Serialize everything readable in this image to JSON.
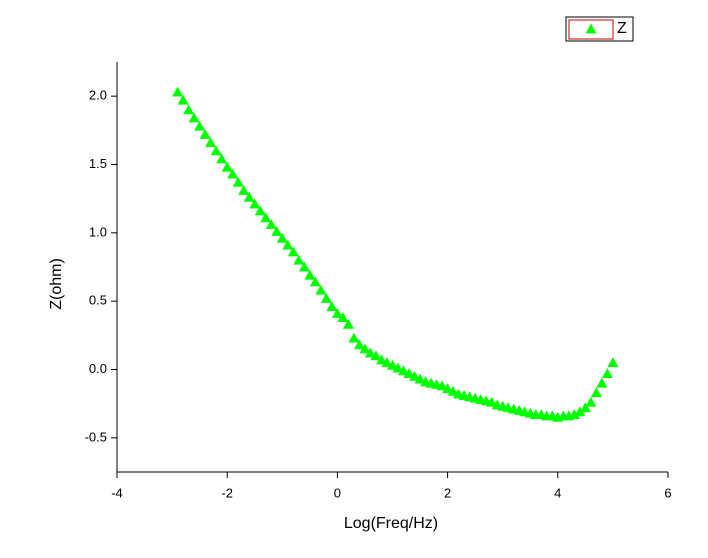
{
  "chart_data": {
    "type": "scatter",
    "x_label": "Log(Freq/Hz)",
    "y_label": "Z(ohm)",
    "xlim": [
      -4,
      6
    ],
    "ylim": [
      -0.75,
      2.25
    ],
    "xticks": [
      -4,
      -2,
      0,
      2,
      4,
      6
    ],
    "yticks": [
      -0.5,
      {
        "value": 0,
        "label": "0.0"
      },
      0.5,
      {
        "value": 1,
        "label": "1.0"
      },
      1.5,
      {
        "value": 2,
        "label": "2.0"
      }
    ],
    "legend": "top-right",
    "x": [
      -2.9,
      -2.8,
      -2.7,
      -2.6,
      -2.5,
      -2.4,
      -2.3,
      -2.2,
      -2.1,
      -2.0,
      -1.9,
      -1.8,
      -1.7,
      -1.6,
      -1.5,
      -1.4,
      -1.3,
      -1.2,
      -1.1,
      -1.0,
      -0.9,
      -0.8,
      -0.7,
      -0.6,
      -0.5,
      -0.4,
      -0.3,
      -0.2,
      -0.1,
      0.0,
      0.1,
      0.2,
      0.3,
      0.4,
      0.5,
      0.6,
      0.7,
      0.8,
      0.9,
      1.0,
      1.1,
      1.2,
      1.3,
      1.4,
      1.5,
      1.6,
      1.7,
      1.8,
      1.9,
      2.0,
      2.1,
      2.2,
      2.3,
      2.4,
      2.5,
      2.6,
      2.7,
      2.8,
      2.9,
      3.0,
      3.1,
      3.2,
      3.3,
      3.4,
      3.5,
      3.6,
      3.7,
      3.8,
      3.9,
      4.0,
      4.1,
      4.2,
      4.3,
      4.4,
      4.5,
      4.6,
      4.7,
      4.8,
      4.9,
      5.0
    ],
    "series": [
      {
        "name": "Z",
        "color": "#00ff00",
        "values": [
          2.03,
          1.97,
          1.9,
          1.84,
          1.78,
          1.72,
          1.66,
          1.6,
          1.54,
          1.48,
          1.43,
          1.37,
          1.31,
          1.26,
          1.21,
          1.16,
          1.11,
          1.06,
          1.01,
          0.96,
          0.91,
          0.86,
          0.8,
          0.75,
          0.69,
          0.64,
          0.58,
          0.52,
          0.46,
          0.41,
          0.38,
          0.33,
          0.23,
          0.18,
          0.15,
          0.12,
          0.1,
          0.07,
          0.05,
          0.03,
          0.01,
          -0.01,
          -0.03,
          -0.05,
          -0.07,
          -0.09,
          -0.1,
          -0.11,
          -0.12,
          -0.14,
          -0.16,
          -0.18,
          -0.19,
          -0.2,
          -0.21,
          -0.22,
          -0.23,
          -0.24,
          -0.26,
          -0.27,
          -0.28,
          -0.29,
          -0.3,
          -0.31,
          -0.32,
          -0.33,
          -0.33,
          -0.34,
          -0.34,
          -0.35,
          -0.34,
          -0.34,
          -0.33,
          -0.31,
          -0.28,
          -0.24,
          -0.17,
          -0.1,
          -0.03,
          0.05
        ]
      }
    ]
  }
}
